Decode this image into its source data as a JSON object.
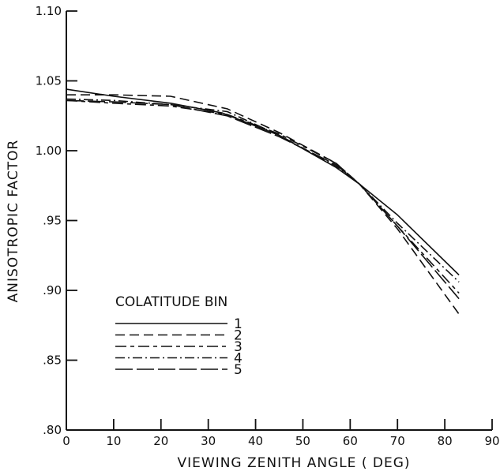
{
  "chart_data": {
    "type": "line",
    "title": "",
    "xlabel": "VIEWING ZENITH ANGLE ( DEG)",
    "ylabel": "ANISOTROPIC FACTOR",
    "xlim": [
      0,
      90
    ],
    "ylim": [
      0.8,
      1.1
    ],
    "x_ticks": [
      0,
      10,
      20,
      30,
      40,
      50,
      60,
      70,
      80,
      90
    ],
    "x_tick_labels": [
      "0",
      "10",
      "20",
      "30",
      "40",
      "50",
      "60",
      "70",
      "80",
      "90"
    ],
    "y_ticks": [
      0.8,
      0.85,
      0.9,
      0.95,
      1.0,
      1.05,
      1.1
    ],
    "y_tick_labels": [
      ".80",
      ".85",
      ".90",
      ".95",
      "1.00",
      "1.05",
      "1.10"
    ],
    "grid": false,
    "legend_title": "COLATITUDE BIN",
    "legend_position": "lower-left",
    "series": [
      {
        "name": "1",
        "dash": "solid",
        "x": [
          0,
          10,
          22,
          33,
          45,
          57,
          62,
          70,
          83
        ],
        "y": [
          1.044,
          1.039,
          1.034,
          1.027,
          1.011,
          0.988,
          0.976,
          0.954,
          0.911
        ]
      },
      {
        "name": "2",
        "dash": "long-dash",
        "x": [
          0,
          10,
          22,
          34,
          45,
          57,
          62,
          70,
          83
        ],
        "y": [
          1.04,
          1.04,
          1.039,
          1.03,
          1.013,
          0.991,
          0.976,
          0.944,
          0.883
        ]
      },
      {
        "name": "3",
        "dash": "long-dash-short",
        "x": [
          0,
          10,
          22,
          34,
          45,
          57,
          62,
          70,
          83
        ],
        "y": [
          1.036,
          1.034,
          1.032,
          1.026,
          1.012,
          0.991,
          0.976,
          0.946,
          0.898
        ]
      },
      {
        "name": "4",
        "dash": "dash-dot",
        "x": [
          0,
          10,
          22,
          34,
          45,
          57,
          62,
          70,
          83
        ],
        "y": [
          1.037,
          1.036,
          1.033,
          1.028,
          1.011,
          0.989,
          0.976,
          0.948,
          0.906
        ]
      },
      {
        "name": "5",
        "dash": "dash-solid",
        "x": [
          0,
          10,
          22,
          34,
          45,
          57,
          62,
          70,
          83
        ],
        "y": [
          1.036,
          1.035,
          1.033,
          1.025,
          1.01,
          0.99,
          0.976,
          0.946,
          0.894
        ]
      }
    ]
  }
}
